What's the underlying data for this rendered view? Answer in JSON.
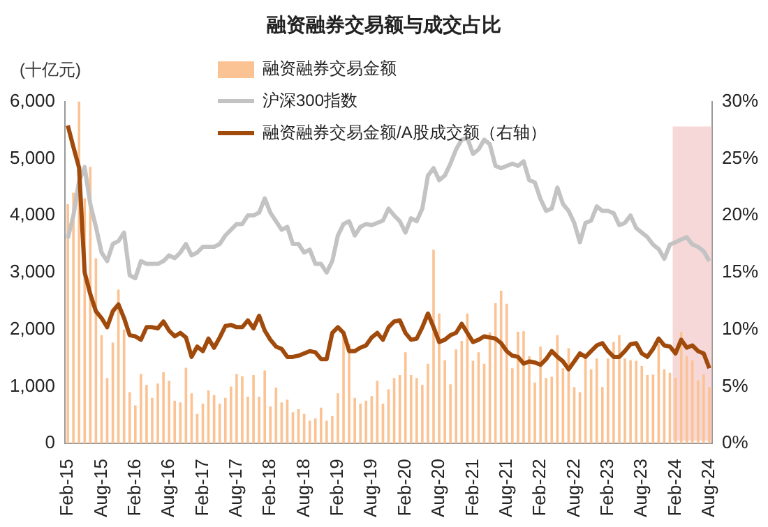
{
  "chart_data": {
    "type": "bar",
    "title": "融资融券交易额与成交占比",
    "ylabel": "(十亿元)",
    "categories": [
      "Feb-15",
      null,
      null,
      null,
      null,
      null,
      "Aug-15",
      null,
      null,
      null,
      null,
      null,
      "Feb-16",
      null,
      null,
      null,
      null,
      null,
      "Aug-16",
      null,
      null,
      null,
      null,
      null,
      "Feb-17",
      null,
      null,
      null,
      null,
      null,
      "Aug-17",
      null,
      null,
      null,
      null,
      null,
      "Feb-18",
      null,
      null,
      null,
      null,
      null,
      "Aug-18",
      null,
      null,
      null,
      null,
      null,
      "Feb-19",
      null,
      null,
      null,
      null,
      null,
      "Aug-19",
      null,
      null,
      null,
      null,
      null,
      "Feb-20",
      null,
      null,
      null,
      null,
      null,
      "Aug-20",
      null,
      null,
      null,
      null,
      null,
      "Feb-21",
      null,
      null,
      null,
      null,
      null,
      "Aug-21",
      null,
      null,
      null,
      null,
      null,
      "Feb-22",
      null,
      null,
      null,
      null,
      null,
      "Aug-22",
      null,
      null,
      null,
      null,
      null,
      "Feb-23",
      null,
      null,
      null,
      null,
      null,
      "Aug-23",
      null,
      null,
      null,
      null,
      null,
      "Feb-24",
      null,
      null,
      null,
      null,
      null,
      "Aug-24"
    ],
    "series": [
      {
        "name": "融资融券交易金额",
        "color": "#fbc394",
        "values": [
          4200,
          4400,
          6000,
          4300,
          4850,
          3250,
          1900,
          1150,
          1770,
          2700,
          2000,
          900,
          670,
          1220,
          1030,
          800,
          1050,
          1250,
          1100,
          750,
          720,
          1330,
          880,
          520,
          700,
          930,
          850,
          700,
          800,
          1000,
          1220,
          1180,
          820,
          1200,
          820,
          1280,
          650,
          980,
          720,
          770,
          550,
          600,
          520,
          400,
          440,
          630,
          400,
          480,
          880,
          1900,
          1750,
          800,
          700,
          750,
          830,
          1100,
          700,
          950,
          1150,
          1200,
          1600,
          1200,
          1150,
          1030,
          1400,
          3400,
          2280,
          1460,
          1040,
          1650,
          1800,
          2280,
          1450,
          1600,
          1400,
          1950,
          2460,
          2680,
          2450,
          1320,
          1960,
          1970,
          1530,
          1070,
          1700,
          1150,
          1170,
          1900,
          1320,
          1670,
          990,
          900,
          1530,
          1300,
          1490,
          990,
          1490,
          1780,
          1900,
          1490,
          1460,
          1450,
          1360,
          1200,
          1210,
          1740,
          1300,
          1240,
          1150,
          1960,
          1530,
          1460,
          1110,
          1210,
          990
        ]
      },
      {
        "name": "沪深300指数",
        "type": "line",
        "color": "#c3c3c3",
        "values": [
          3600,
          4000,
          4600,
          4850,
          4200,
          3800,
          3350,
          3200,
          3500,
          3550,
          3700,
          2950,
          2900,
          3200,
          3150,
          3150,
          3150,
          3200,
          3300,
          3250,
          3350,
          3500,
          3300,
          3350,
          3450,
          3450,
          3450,
          3500,
          3650,
          3750,
          3850,
          3850,
          4000,
          4000,
          4050,
          4300,
          4050,
          3900,
          3750,
          3800,
          3500,
          3500,
          3350,
          3400,
          3150,
          3150,
          3000,
          3200,
          3650,
          3850,
          3900,
          3650,
          3800,
          3850,
          3830,
          3870,
          3910,
          4120,
          4000,
          3900,
          3700,
          3950,
          3900,
          4120,
          4700,
          4830,
          4620,
          4700,
          4910,
          5160,
          5330,
          5360,
          5080,
          5160,
          5330,
          5250,
          4870,
          4830,
          4870,
          4910,
          4870,
          4950,
          4620,
          4580,
          4290,
          4080,
          4120,
          4490,
          4200,
          4080,
          3870,
          3530,
          3870,
          3910,
          4160,
          4080,
          4080,
          4040,
          3830,
          3870,
          4000,
          3780,
          3700,
          3620,
          3490,
          3410,
          3240,
          3490,
          3530,
          3580,
          3620,
          3490,
          3450,
          3370,
          3200
        ]
      },
      {
        "name": "融资融券交易金额/A股成交额（右轴）",
        "type": "line",
        "axis": "y2",
        "color": "#a04a0c",
        "values": [
          27.9,
          26.0,
          24.2,
          15.0,
          13.1,
          11.6,
          11.0,
          10.2,
          11.6,
          12.2,
          11.0,
          9.5,
          9.4,
          9.1,
          10.2,
          10.2,
          10.1,
          10.7,
          9.9,
          9.4,
          9.7,
          9.3,
          7.6,
          8.5,
          8.1,
          9.2,
          8.4,
          9.3,
          10.3,
          10.4,
          10.2,
          10.2,
          10.8,
          10.1,
          11.2,
          9.9,
          9.1,
          8.5,
          8.3,
          7.6,
          7.6,
          7.7,
          7.9,
          8.1,
          8.0,
          7.4,
          7.4,
          9.7,
          10.2,
          9.7,
          8.1,
          8.1,
          8.4,
          8.6,
          9.3,
          9.7,
          9.1,
          10.2,
          10.7,
          10.8,
          9.7,
          9.1,
          9.2,
          10.2,
          11.4,
          10.2,
          8.9,
          9.1,
          9.5,
          9.7,
          10.5,
          9.7,
          8.9,
          9.1,
          9.4,
          9.3,
          9.2,
          8.8,
          8.1,
          7.7,
          7.6,
          7.0,
          7.2,
          7.1,
          6.9,
          7.4,
          8.1,
          7.6,
          7.2,
          6.5,
          7.2,
          7.9,
          7.6,
          8.1,
          8.6,
          8.8,
          8.1,
          7.6,
          7.6,
          8.1,
          8.7,
          8.8,
          7.9,
          7.6,
          8.3,
          9.2,
          8.6,
          8.5,
          7.9,
          9.1,
          8.4,
          8.6,
          8.1,
          7.9,
          6.6
        ]
      }
    ],
    "ylim": [
      0,
      6000
    ],
    "yticks": [
      0,
      {
        "value": 1000,
        "label": "1,000"
      },
      {
        "value": 2000,
        "label": "2,000"
      },
      {
        "value": 3000,
        "label": "3,000"
      },
      {
        "value": 4000,
        "label": "4,000"
      },
      {
        "value": 5000,
        "label": "5,000"
      },
      {
        "value": 6000,
        "label": "6,000"
      }
    ],
    "y2lim": [
      0,
      30
    ],
    "y2ticks": [
      {
        "value": 0,
        "label": "0%"
      },
      {
        "value": 5,
        "label": "5%"
      },
      {
        "value": 10,
        "label": "10%"
      },
      {
        "value": 15,
        "label": "15%"
      },
      {
        "value": 20,
        "label": "20%"
      },
      {
        "value": 25,
        "label": "25%"
      },
      {
        "value": 30,
        "label": "30%"
      }
    ],
    "bands": [
      {
        "axis": "x",
        "from": "Feb-24",
        "to": "Aug-24",
        "color": "#f0b8b8"
      }
    ],
    "grid": false,
    "legend": "top",
    "marker": "none"
  }
}
